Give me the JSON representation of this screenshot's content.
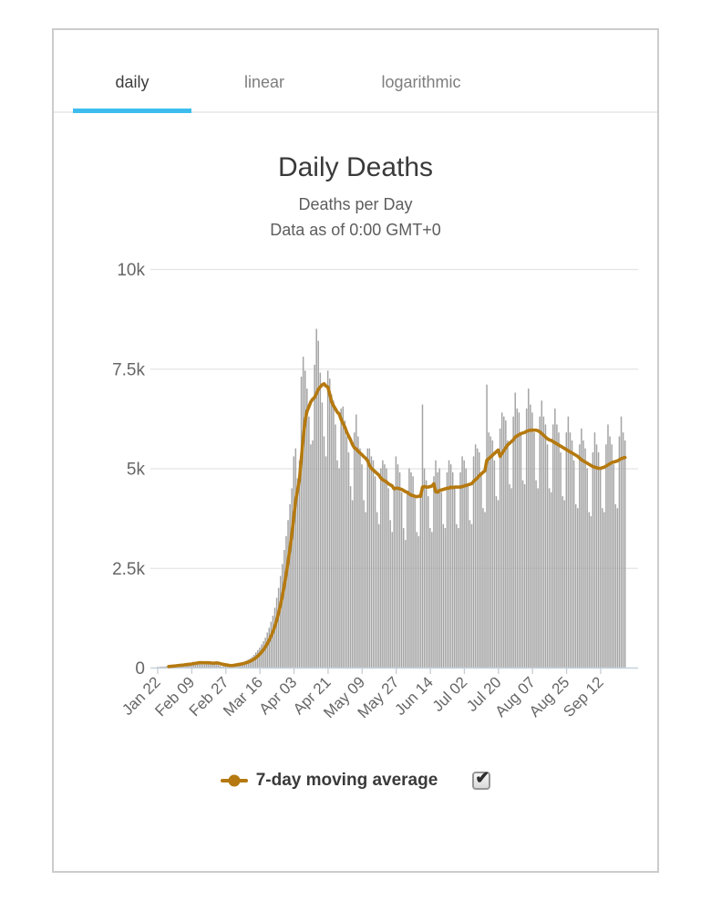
{
  "tabs": [
    {
      "label": "daily",
      "active": true
    },
    {
      "label": "linear",
      "active": false
    },
    {
      "label": "logarithmic",
      "active": false
    }
  ],
  "header": {
    "title": "Daily Deaths",
    "subtitle1": "Deaths per Day",
    "subtitle2": "Data as of 0:00 GMT+0"
  },
  "legend": {
    "label": "7-day moving average",
    "checked": true,
    "checkbox_glyph": "✔"
  },
  "colors": {
    "tab_underline": "#3dbdee",
    "bar": "#a4a4a4",
    "line": "#b5790f",
    "grid": "#e4e4e4",
    "axis": "#c7d2dc",
    "tick": "#c5ced6",
    "axis_text": "#666666",
    "title_text": "#3a3a3a"
  },
  "chart_data": {
    "type": "bar",
    "title": "Daily Deaths",
    "subtitle": "Deaths per Day — Data as of 0:00 GMT+0",
    "xlabel": "",
    "ylabel": "",
    "ylim": [
      0,
      10000
    ],
    "grid": true,
    "legend_position": "bottom",
    "y_ticks": [
      {
        "label": "0",
        "value": 0
      },
      {
        "label": "2.5k",
        "value": 2500
      },
      {
        "label": "5k",
        "value": 5000
      },
      {
        "label": "7.5k",
        "value": 7500
      },
      {
        "label": "10k",
        "value": 10000
      }
    ],
    "x_ticks": [
      {
        "label": "Jan 22",
        "day": 0
      },
      {
        "label": "Feb 09",
        "day": 18
      },
      {
        "label": "Feb 27",
        "day": 36
      },
      {
        "label": "Mar 16",
        "day": 54
      },
      {
        "label": "Apr 03",
        "day": 72
      },
      {
        "label": "Apr 21",
        "day": 90
      },
      {
        "label": "May 09",
        "day": 108
      },
      {
        "label": "May 27",
        "day": 126
      },
      {
        "label": "Jun 14",
        "day": 144
      },
      {
        "label": "Jul 02",
        "day": 162
      },
      {
        "label": "Jul 20",
        "day": 180
      },
      {
        "label": "Aug 07",
        "day": 198
      },
      {
        "label": "Aug 25",
        "day": 216
      },
      {
        "label": "Sep 12",
        "day": 234
      }
    ],
    "bar_series_name": "Daily Deaths",
    "bars": [
      17,
      18,
      24,
      26,
      26,
      38,
      43,
      46,
      45,
      57,
      64,
      66,
      73,
      73,
      86,
      89,
      97,
      108,
      97,
      146,
      121,
      143,
      142,
      106,
      106,
      98,
      136,
      114,
      118,
      109,
      97,
      150,
      71,
      52,
      29,
      44,
      47,
      57,
      64,
      66,
      73,
      86,
      98,
      105,
      120,
      135,
      150,
      175,
      200,
      230,
      270,
      320,
      380,
      440,
      500,
      580,
      660,
      750,
      880,
      1000,
      1150,
      1300,
      1500,
      1750,
      2000,
      2300,
      2600,
      2950,
      3300,
      3700,
      4100,
      4500,
      5300,
      5500,
      4750,
      5200,
      7300,
      7800,
      7450,
      7000,
      6300,
      5600,
      5700,
      7600,
      8500,
      8200,
      7400,
      6650,
      5800,
      5300,
      7450,
      7250,
      6850,
      6700,
      6100,
      5200,
      5000,
      6500,
      6550,
      6200,
      5800,
      5400,
      4550,
      4200,
      5900,
      6350,
      5800,
      5500,
      5100,
      4200,
      3900,
      5500,
      5500,
      5300,
      5200,
      4800,
      3900,
      3600,
      5000,
      5200,
      5100,
      5000,
      4500,
      3700,
      3400,
      4500,
      5300,
      5100,
      4900,
      4400,
      3500,
      3200,
      4400,
      5000,
      4900,
      4800,
      4300,
      3400,
      3300,
      4400,
      6600,
      5000,
      4700,
      4300,
      3500,
      3400,
      4800,
      5200,
      4900,
      5000,
      4400,
      3600,
      3500,
      4900,
      5200,
      5100,
      4900,
      4500,
      3600,
      3500,
      4900,
      5300,
      5200,
      5000,
      4600,
      3700,
      3600,
      5300,
      5600,
      5500,
      5400,
      4900,
      4000,
      3900,
      7100,
      5900,
      5800,
      5700,
      5200,
      4300,
      4200,
      6000,
      6400,
      6300,
      6200,
      5700,
      4600,
      4500,
      6300,
      6900,
      6500,
      6400,
      5900,
      4700,
      4600,
      6500,
      7000,
      6600,
      6400,
      5900,
      4700,
      4500,
      6300,
      6700,
      6300,
      6100,
      5600,
      4500,
      4400,
      6100,
      6500,
      6100,
      5900,
      5400,
      4300,
      4200,
      5900,
      6300,
      5900,
      5700,
      5200,
      4100,
      4000,
      5600,
      6000,
      5700,
      5500,
      5000,
      3900,
      3800,
      5400,
      5900,
      5600,
      5400,
      5000,
      4000,
      3900,
      5600,
      6100,
      5800,
      5600,
      5100,
      4100,
      4000,
      5800,
      6300,
      5900,
      5700
    ],
    "line_series": {
      "name": "7-day moving average",
      "definition": "trailing 7-day mean of bars"
    }
  }
}
